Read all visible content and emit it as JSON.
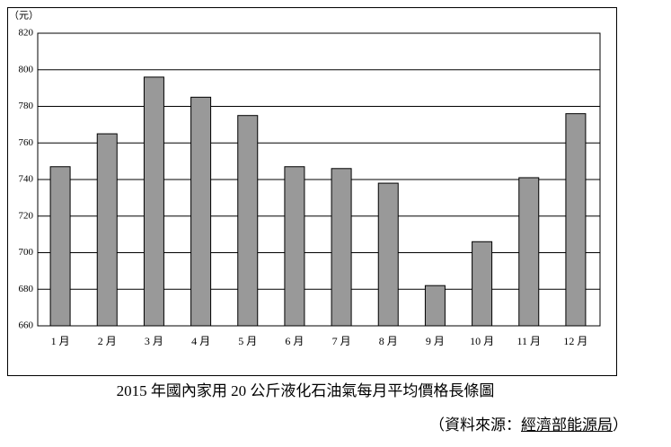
{
  "chart_data": {
    "type": "bar",
    "title": "2015 年國內家用 20 公斤液化石油氣每月平均價格長條圖",
    "unit": "（元）",
    "categories": [
      "1 月",
      "2 月",
      "3 月",
      "4 月",
      "5 月",
      "6 月",
      "7 月",
      "8 月",
      "9 月",
      "10 月",
      "11 月",
      "12 月"
    ],
    "values": [
      747,
      765,
      796,
      785,
      775,
      747,
      746,
      738,
      682,
      706,
      741,
      776
    ],
    "color": "#999999",
    "ylim": [
      660,
      820
    ],
    "yticks": [
      660,
      680,
      700,
      720,
      740,
      760,
      780,
      800,
      820
    ],
    "grid": true
  },
  "source": {
    "prefix": "（資料來源：",
    "name": "經濟部能源局",
    "suffix": "）"
  }
}
